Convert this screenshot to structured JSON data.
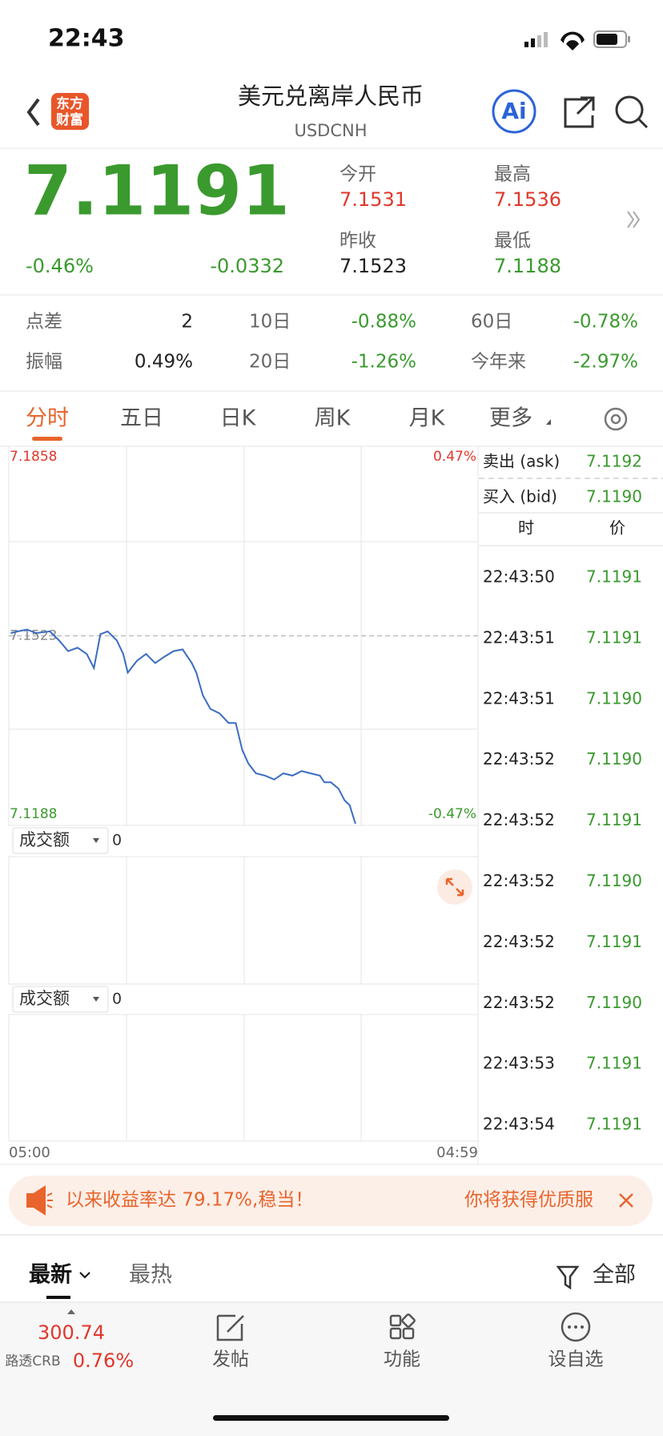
{
  "status_bar": {
    "time": "22:43"
  },
  "header": {
    "logo": [
      "东方",
      "财富"
    ],
    "title": "美元兑离岸人民币",
    "subtitle": "USDCNH",
    "ai": "Ai"
  },
  "quote": {
    "price": "7.1191",
    "change_pct": "-0.46%",
    "change": "-0.0332",
    "open_label": "今开",
    "open": "7.1531",
    "high_label": "最高",
    "high": "7.1536",
    "prev_close_label": "昨收",
    "prev_close": "7.1523",
    "low_label": "最低",
    "low": "7.1188"
  },
  "stats": {
    "rows": [
      [
        {
          "label": "点差",
          "value": "2"
        },
        {
          "label": "10日",
          "value": "-0.88%"
        },
        {
          "label": "60日",
          "value": "-0.78%"
        }
      ],
      [
        {
          "label": "振幅",
          "value": "0.49%"
        },
        {
          "label": "20日",
          "value": "-1.26%"
        },
        {
          "label": "今年来",
          "value": "-2.97%"
        }
      ]
    ]
  },
  "tabs": [
    "分时",
    "五日",
    "日K",
    "周K",
    "月K",
    "更多"
  ],
  "chart_data": {
    "type": "line",
    "color": "#3a6cc2",
    "ylim": [
      7.1188,
      7.1858
    ],
    "yticks": [
      7.1858,
      7.1523,
      7.1188
    ],
    "y2lim": [
      -0.47,
      0.47
    ],
    "y2ticks": [
      {
        "value": 0.47,
        "label": "0.47%"
      },
      {
        "value": -0.47,
        "label": "-0.47%"
      }
    ],
    "xlim": [
      "05:00",
      "04:59"
    ],
    "xticks": [
      "05:00",
      "04:59"
    ],
    "x": [
      "05:06",
      "05:28",
      "05:56",
      "06:24",
      "07:06",
      "07:34",
      "08:02",
      "08:31",
      "08:59",
      "09:21",
      "09:41",
      "10:03",
      "10:31",
      "10:51",
      "11:05",
      "11:33",
      "12:01",
      "12:29",
      "12:57",
      "13:25",
      "13:53",
      "14:21",
      "14:35",
      "14:55",
      "15:18",
      "15:46",
      "16:14",
      "16:36",
      "16:56",
      "17:15",
      "17:38",
      "18:06",
      "18:34",
      "19:02",
      "19:30",
      "19:58",
      "20:26",
      "20:54",
      "21:08",
      "21:28",
      "21:51",
      "22:10",
      "22:25",
      "22:43"
    ],
    "series": [
      {
        "values": [
          7.1528,
          7.1531,
          7.1534,
          7.1528,
          7.1531,
          7.1515,
          7.1496,
          7.1502,
          7.1491,
          7.1466,
          7.1526,
          7.1531,
          7.1515,
          7.1491,
          7.1458,
          7.1479,
          7.1491,
          7.1475,
          7.1486,
          7.1496,
          7.1499,
          7.1475,
          7.1458,
          7.1418,
          7.1394,
          7.1386,
          7.1369,
          7.1369,
          7.1321,
          7.1297,
          7.128,
          7.1276,
          7.1269,
          7.128,
          7.1276,
          7.1284,
          7.128,
          7.1276,
          7.1264,
          7.1264,
          7.1253,
          7.1232,
          7.1224,
          7.1191
        ]
      }
    ]
  },
  "volume_panels": [
    {
      "label": "成交额",
      "value": "0"
    },
    {
      "label": "成交额",
      "value": "0"
    }
  ],
  "order_book": {
    "ask_label": "卖出 (ask)",
    "ask": "7.1192",
    "bid_label": "买入 (bid)",
    "bid": "7.1190",
    "time_header": "时",
    "price_header": "价",
    "trades": [
      [
        "22:43:50",
        "7.1191"
      ],
      [
        "22:43:51",
        "7.1191"
      ],
      [
        "22:43:51",
        "7.1190"
      ],
      [
        "22:43:52",
        "7.1190"
      ],
      [
        "22:43:52",
        "7.1191"
      ],
      [
        "22:43:52",
        "7.1190"
      ],
      [
        "22:43:52",
        "7.1191"
      ],
      [
        "22:43:52",
        "7.1190"
      ],
      [
        "22:43:53",
        "7.1191"
      ],
      [
        "22:43:54",
        "7.1191"
      ]
    ]
  },
  "banner": {
    "left": "以来收益率达 79.17%,稳当！",
    "right": "你将获得优质服"
  },
  "feed": {
    "tabs": [
      "最新",
      "最热"
    ],
    "filter": "全部"
  },
  "bottom_bar": {
    "index_value": "300.74",
    "index_name": "路透CRB",
    "index_change": "0.76%",
    "items": [
      "发帖",
      "功能",
      "设自选"
    ]
  }
}
